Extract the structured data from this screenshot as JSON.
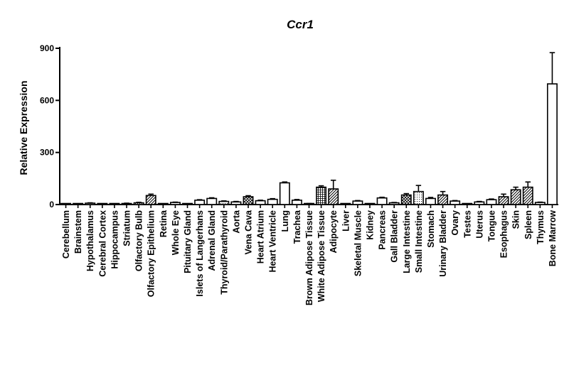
{
  "chart_data": {
    "type": "bar",
    "title": "Ccr1",
    "xlabel": "",
    "ylabel": "Relative Expression",
    "ylim": [
      0,
      900
    ],
    "yticks": [
      "0",
      "300",
      "600",
      "900"
    ],
    "grid": false,
    "legend": "none",
    "bar_color": "#000000",
    "categories": [
      "Cerebellum",
      "Brainstem",
      "Hypothalamus",
      "Cerebral Cortex",
      "Hippocampus",
      "Striatum",
      "Olfactory Bulb",
      "Olfactory Epithelium",
      "Retina",
      "Whole Eye",
      "Pituitary Gland",
      "Islets of Langerhans",
      "Adrenal Gland",
      "Thyroid/Parathyroid",
      "Aorta",
      "Vena Cava",
      "Heart Atrium",
      "Heart Ventricle",
      "Lung",
      "Trachea",
      "Brown Adipose Tissue",
      "White Adipose Tissue",
      "Adipocyte",
      "Liver",
      "Skeletal Muscle",
      "Kidney",
      "Pancreas",
      "Gall Bladder",
      "Large Intestine",
      "Small Intestine",
      "Stomach",
      "Urinary Bladder",
      "Ovary",
      "Testes",
      "Uterus",
      "Tongue",
      "Esophagus",
      "Skin",
      "Spleen",
      "Thymus",
      "Bone Marrow"
    ],
    "values": [
      3,
      4,
      8,
      4,
      4,
      6,
      10,
      52,
      2,
      12,
      3,
      25,
      35,
      18,
      15,
      45,
      22,
      30,
      125,
      25,
      5,
      100,
      90,
      2,
      20,
      4,
      38,
      10,
      55,
      75,
      35,
      55,
      20,
      2,
      15,
      28,
      45,
      85,
      100,
      12,
      695
    ],
    "errors": [
      1,
      1,
      2,
      1,
      1,
      2,
      3,
      8,
      1,
      2,
      1,
      3,
      4,
      3,
      3,
      6,
      3,
      4,
      5,
      4,
      1,
      8,
      50,
      1,
      3,
      1,
      4,
      2,
      8,
      35,
      6,
      20,
      3,
      1,
      3,
      4,
      15,
      15,
      30,
      2,
      180
    ],
    "patterns": [
      "solid",
      "solid",
      "solid",
      "solid",
      "solid",
      "solid",
      "dots",
      "diag",
      "solid",
      "solid",
      "solid",
      "solid",
      "solid",
      "dots",
      "solid",
      "cross",
      "solid",
      "solid",
      "solid",
      "solid",
      "solid",
      "grid",
      "diag",
      "solid",
      "solid",
      "solid",
      "solid",
      "solid",
      "cross",
      "dots",
      "solid",
      "diag",
      "solid",
      "solid",
      "solid",
      "solid",
      "diag",
      "diag",
      "diag",
      "solid",
      "solid"
    ]
  }
}
